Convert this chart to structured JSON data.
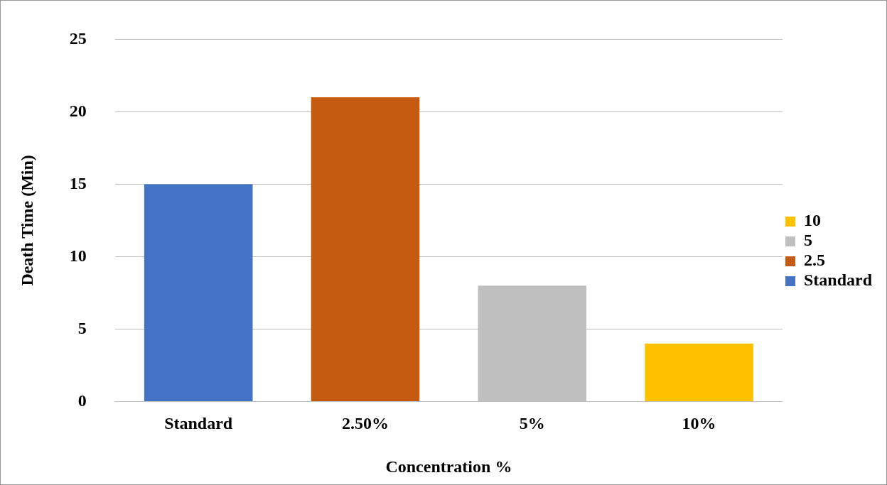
{
  "chart_data": {
    "type": "bar",
    "xlabel": "Concentration %",
    "ylabel": "Death Time (Min)",
    "categories": [
      "Standard",
      "2.50%",
      "5%",
      "10%"
    ],
    "series": [
      {
        "name": "Standard",
        "color": "#4472c4",
        "values": [
          15,
          null,
          null,
          null
        ]
      },
      {
        "name": "2.5",
        "color": "#c55a11",
        "values": [
          null,
          21,
          null,
          null
        ]
      },
      {
        "name": "5",
        "color": "#bfbfbf",
        "values": [
          null,
          null,
          8,
          null
        ]
      },
      {
        "name": "10",
        "color": "#ffc000",
        "values": [
          null,
          null,
          null,
          4
        ]
      }
    ],
    "ylim": [
      0,
      25
    ],
    "yticks": [
      0,
      5,
      10,
      15,
      20,
      25
    ],
    "grid": "y",
    "legend": "right"
  }
}
